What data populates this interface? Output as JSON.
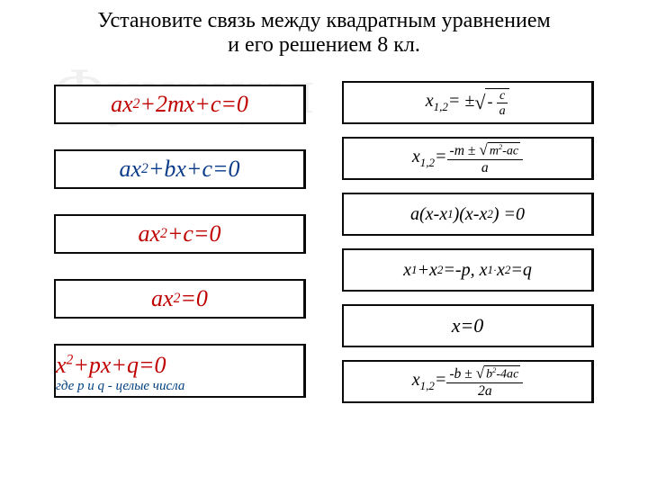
{
  "title_line1": "Установите связь между квадратным уравнением",
  "title_line2": "и его решением 8 кл.",
  "watermark": "Функция",
  "left_equations": [
    {
      "html": "ax<sup>2</sup>+2mx+c=0",
      "color": "red"
    },
    {
      "html": "ax<sup>2</sup>+bx+c=0",
      "color": "blue"
    },
    {
      "html": "ax<sup>2</sup>+c=0",
      "color": "red"
    },
    {
      "html": "ax<sup>2</sup>=0",
      "color": "red"
    },
    {
      "html": "x<sup>2</sup>+px+q=0",
      "color": "red",
      "note": "где p и q - целые числа"
    }
  ],
  "right_equations": [
    {
      "type": "sqrt_frac",
      "lhs": "x<sub>1,2</sub>= ±",
      "num": "c",
      "den": "a",
      "neg": "-"
    },
    {
      "type": "quad",
      "lhs": "x<sub>1,2</sub>=",
      "top_left": "-m",
      "pm": "±",
      "rad": "m<sup>2</sup>-ac",
      "den": "a"
    },
    {
      "type": "plain",
      "text": "a(x-x<sub>1</sub>)(x-x<sub>2</sub>) =0"
    },
    {
      "type": "plain",
      "text": "x<sub>1</sub>+x<sub>2</sub>=-p, x<sub>1</sub><span class='dot'>·</span> x<sub>2</sub>=q"
    },
    {
      "type": "plain",
      "text": "x=0"
    },
    {
      "type": "quad",
      "lhs": "x<sub>1,2</sub>=",
      "top_left": "-b",
      "pm": "±",
      "rad": "b<sup>2</sup>-4ac",
      "den": "2a"
    }
  ],
  "colors": {
    "red": "#c00000",
    "blue": "#0a3a8a",
    "border": "#0a0a0a",
    "note": "#004080",
    "bg": "#ffffff"
  }
}
